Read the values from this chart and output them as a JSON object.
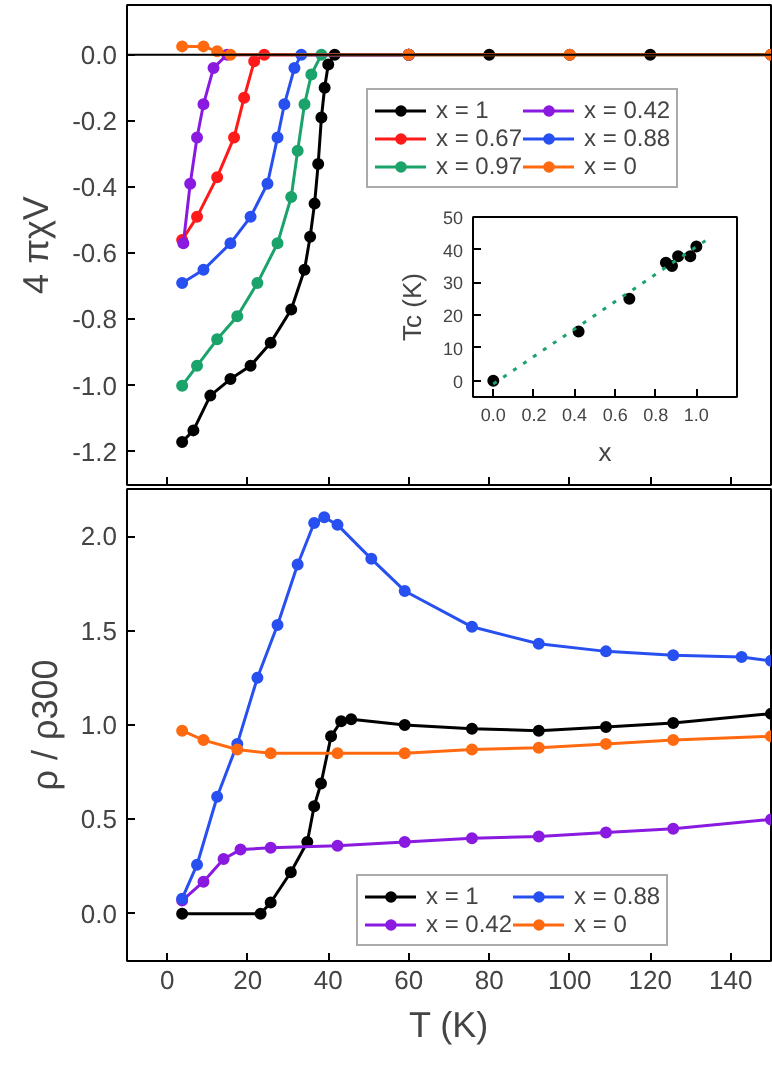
{
  "chart_data": [
    {
      "type": "line",
      "ylabel": "4 πχV",
      "xlim": [
        -10,
        150
      ],
      "ylim": [
        -1.3,
        0.15
      ],
      "xticks": [
        0,
        20,
        40,
        60,
        80,
        100,
        120,
        140
      ],
      "yticks": [
        -1.2,
        {
          "value": -1,
          "label": "-1.0"
        },
        -0.8,
        -0.6,
        -0.4,
        -0.2,
        {
          "value": 0,
          "label": "0.0"
        }
      ],
      "tick_labels": "y",
      "grid": false,
      "legend": "top right",
      "marker": "circle",
      "ref_lines": [
        {
          "axis": "y",
          "value": 0,
          "color": "#000000"
        }
      ],
      "series": [
        {
          "name": "x = 1",
          "color": "#000000",
          "x": [
            3.7,
            6.5,
            10.7,
            15.7,
            20.7,
            25.7,
            30.8,
            34.1,
            35.5,
            36.6,
            37.5,
            38.3,
            39.1,
            40,
            41.6,
            60,
            80,
            100,
            120,
            150
          ],
          "values": [
            -1.17,
            -1.135,
            -1.03,
            -0.98,
            -0.94,
            -0.87,
            -0.77,
            -0.65,
            -0.55,
            -0.45,
            -0.33,
            -0.19,
            -0.1,
            -0.03,
            0,
            0,
            0,
            0,
            0,
            0
          ]
        },
        {
          "name": "x = 0.67",
          "color": "#ff1a1a",
          "x": [
            3.7,
            7.4,
            12.4,
            16.6,
            19.1,
            21.6,
            24.1,
            60
          ],
          "values": [
            -0.56,
            -0.49,
            -0.37,
            -0.25,
            -0.13,
            -0.02,
            0,
            0
          ]
        },
        {
          "name": "x = 0.97",
          "color": "#1aa36a",
          "x": [
            3.7,
            7.4,
            12.4,
            17.4,
            22.4,
            27.4,
            30.8,
            32.4,
            34.1,
            35.8,
            38.3,
            60
          ],
          "values": [
            -1.0,
            -0.94,
            -0.86,
            -0.79,
            -0.69,
            -0.57,
            -0.43,
            -0.29,
            -0.15,
            -0.06,
            0,
            0
          ]
        },
        {
          "name": "x = 0.42",
          "color": "#8a1ae0",
          "x": [
            4,
            5.7,
            7.4,
            9,
            11.5,
            14.9,
            60
          ],
          "values": [
            -0.57,
            -0.39,
            -0.25,
            -0.15,
            -0.04,
            0,
            0
          ]
        },
        {
          "name": "x = 0.88",
          "color": "#2850f0",
          "x": [
            3.7,
            9,
            15.7,
            20.7,
            24.9,
            27.4,
            29.1,
            31.6,
            33.3,
            60
          ],
          "values": [
            -0.69,
            -0.65,
            -0.57,
            -0.49,
            -0.39,
            -0.25,
            -0.15,
            -0.04,
            0,
            0
          ]
        },
        {
          "name": "x = 0",
          "color": "#ff6a10",
          "x": [
            3.7,
            9,
            12.4,
            15.7,
            60,
            100,
            150
          ],
          "values": [
            0.025,
            0.025,
            0.01,
            0,
            0,
            0,
            0
          ]
        }
      ]
    },
    {
      "type": "scatter",
      "xlabel": "x",
      "ylabel": "Tc (K)",
      "xlim": [
        -0.1,
        1.2
      ],
      "ylim": [
        -5,
        50
      ],
      "xticks": [
        {
          "value": 0,
          "label": "0.0"
        },
        0.2,
        0.4,
        0.6,
        0.8,
        {
          "value": 1,
          "label": "1.0"
        }
      ],
      "yticks": [
        0,
        10,
        20,
        30,
        40,
        50
      ],
      "grid": false,
      "legend": false,
      "series": [
        {
          "color": "#000000",
          "x": [
            0,
            0.42,
            0.67,
            0.85,
            0.88,
            0.91,
            0.97,
            1.0
          ],
          "values": [
            0,
            15,
            25,
            36,
            35,
            38,
            38,
            41
          ],
          "marker": "circle"
        },
        {
          "type": "line",
          "color": "#1aa36a",
          "line_style": "dotted",
          "x": [
            0,
            1.05
          ],
          "values": [
            -1,
            43
          ]
        }
      ]
    },
    {
      "type": "line",
      "xlabel": "T (K)",
      "ylabel": "ρ / ρ300",
      "xlim": [
        -10,
        150
      ],
      "ylim": [
        -0.25,
        2.25
      ],
      "xticks": [
        0,
        20,
        40,
        60,
        80,
        100,
        120,
        140
      ],
      "yticks": [
        {
          "value": 0,
          "label": "0.0"
        },
        0.5,
        {
          "value": 1,
          "label": "1.0"
        },
        1.5,
        {
          "value": 2,
          "label": "2.0"
        }
      ],
      "grid": false,
      "legend": "bottom right",
      "marker": "circle",
      "series": [
        {
          "name": "x = 1",
          "color": "#000000",
          "x": [
            3.7,
            23.2,
            25.7,
            30.7,
            34.8,
            36.5,
            38.2,
            40.7,
            43.2,
            45.7,
            59,
            75.7,
            92.3,
            109,
            125.7,
            150
          ],
          "values": [
            0,
            0,
            0.06,
            0.22,
            0.38,
            0.57,
            0.69,
            0.94,
            1.02,
            1.03,
            1.0,
            0.98,
            0.97,
            0.99,
            1.01,
            1.06
          ]
        },
        {
          "name": "x = 0.42",
          "color": "#8a1ae0",
          "x": [
            3.7,
            9,
            14,
            18.2,
            25.7,
            42.3,
            59,
            75.7,
            92.3,
            109,
            125.7,
            150
          ],
          "values": [
            0.07,
            0.17,
            0.29,
            0.34,
            0.35,
            0.36,
            0.38,
            0.4,
            0.41,
            0.43,
            0.45,
            0.5
          ]
        },
        {
          "name": "x = 0.88",
          "color": "#2850f0",
          "x": [
            3.7,
            7.4,
            12.4,
            17.4,
            22.4,
            27.4,
            32.4,
            36.5,
            39,
            42.3,
            50.7,
            59,
            75.7,
            92.3,
            109,
            125.7,
            142.7,
            150
          ],
          "values": [
            0.08,
            0.26,
            0.62,
            0.9,
            1.25,
            1.53,
            1.85,
            2.07,
            2.1,
            2.06,
            1.88,
            1.71,
            1.52,
            1.43,
            1.39,
            1.37,
            1.36,
            1.34
          ]
        },
        {
          "name": "x = 0",
          "color": "#ff6a10",
          "x": [
            3.7,
            9,
            17.4,
            25.7,
            42.3,
            59,
            75.7,
            92.3,
            109,
            125.7,
            150
          ],
          "values": [
            0.97,
            0.92,
            0.87,
            0.85,
            0.85,
            0.85,
            0.87,
            0.88,
            0.9,
            0.92,
            0.94
          ]
        }
      ]
    }
  ]
}
